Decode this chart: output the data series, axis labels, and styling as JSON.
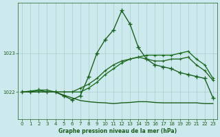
{
  "title": "Graphe pression niveau de la mer (hPa)",
  "bg_color": "#cce9ed",
  "grid_color": "#aacccc",
  "text_color": "#1a5c1a",
  "xlim": [
    -0.5,
    23.5
  ],
  "ylim": [
    1021.3,
    1024.3
  ],
  "x_ticks": [
    0,
    1,
    2,
    3,
    4,
    5,
    6,
    7,
    8,
    9,
    10,
    11,
    12,
    13,
    14,
    15,
    16,
    17,
    18,
    19,
    20,
    21,
    22,
    23
  ],
  "y_ticks": [
    1022,
    1023
  ],
  "series": [
    {
      "x": [
        0,
        1,
        2,
        3,
        4,
        5,
        6,
        7,
        8,
        9,
        10,
        11,
        12,
        13,
        14,
        15,
        16,
        17,
        18,
        19,
        20,
        21,
        22,
        23
      ],
      "y": [
        1022.0,
        1022.0,
        1022.05,
        1022.0,
        1022.0,
        1021.9,
        1021.8,
        1021.9,
        1022.4,
        1023.0,
        1023.35,
        1023.6,
        1024.1,
        1023.75,
        1023.15,
        1022.85,
        1022.7,
        1022.65,
        1022.6,
        1022.5,
        1022.45,
        1022.4,
        1022.35,
        1021.85
      ],
      "color": "#1a6020",
      "lw": 1.0,
      "marker": "+",
      "ms": 4,
      "mew": 1.0
    },
    {
      "x": [
        0,
        2,
        3,
        4,
        5,
        6,
        7,
        8,
        9,
        10,
        11,
        12,
        13,
        14,
        15,
        16,
        17,
        18,
        19,
        20,
        21,
        22,
        23
      ],
      "y": [
        1022.0,
        1022.05,
        1022.05,
        1022.0,
        1022.0,
        1022.0,
        1022.0,
        1022.1,
        1022.25,
        1022.45,
        1022.6,
        1022.75,
        1022.85,
        1022.9,
        1022.95,
        1022.95,
        1022.95,
        1022.95,
        1023.0,
        1023.05,
        1022.85,
        1022.7,
        1022.35
      ],
      "color": "#1a7020",
      "lw": 1.0,
      "marker": "+",
      "ms": 3,
      "mew": 0.8
    },
    {
      "x": [
        0,
        1,
        2,
        3,
        4,
        5,
        6,
        7,
        8,
        9,
        10,
        11,
        12,
        13,
        14,
        15,
        16,
        17,
        18,
        19,
        20,
        21,
        22,
        23
      ],
      "y": [
        1022.0,
        1022.0,
        1022.0,
        1022.0,
        1022.0,
        1022.0,
        1022.0,
        1022.1,
        1022.2,
        1022.35,
        1022.55,
        1022.7,
        1022.8,
        1022.85,
        1022.9,
        1022.85,
        1022.8,
        1022.8,
        1022.85,
        1022.85,
        1022.9,
        1022.7,
        1022.55,
        1022.3
      ],
      "color": "#246824",
      "lw": 1.0,
      "marker": "+",
      "ms": 3,
      "mew": 0.8
    },
    {
      "x": [
        0,
        1,
        2,
        3,
        4,
        5,
        6,
        7,
        8,
        9,
        10,
        11,
        12,
        13,
        14,
        15,
        16,
        17,
        18,
        19,
        20,
        21,
        22,
        23
      ],
      "y": [
        1022.0,
        1022.0,
        1022.0,
        1022.0,
        1022.0,
        1021.92,
        1021.85,
        1021.78,
        1021.75,
        1021.73,
        1021.72,
        1021.7,
        1021.72,
        1021.73,
        1021.75,
        1021.75,
        1021.73,
        1021.72,
        1021.72,
        1021.72,
        1021.72,
        1021.72,
        1021.7,
        1021.7
      ],
      "color": "#1a5c1a",
      "lw": 1.0,
      "marker": null,
      "ms": 0,
      "mew": 0
    }
  ],
  "figsize": [
    3.2,
    2.0
  ],
  "dpi": 100
}
